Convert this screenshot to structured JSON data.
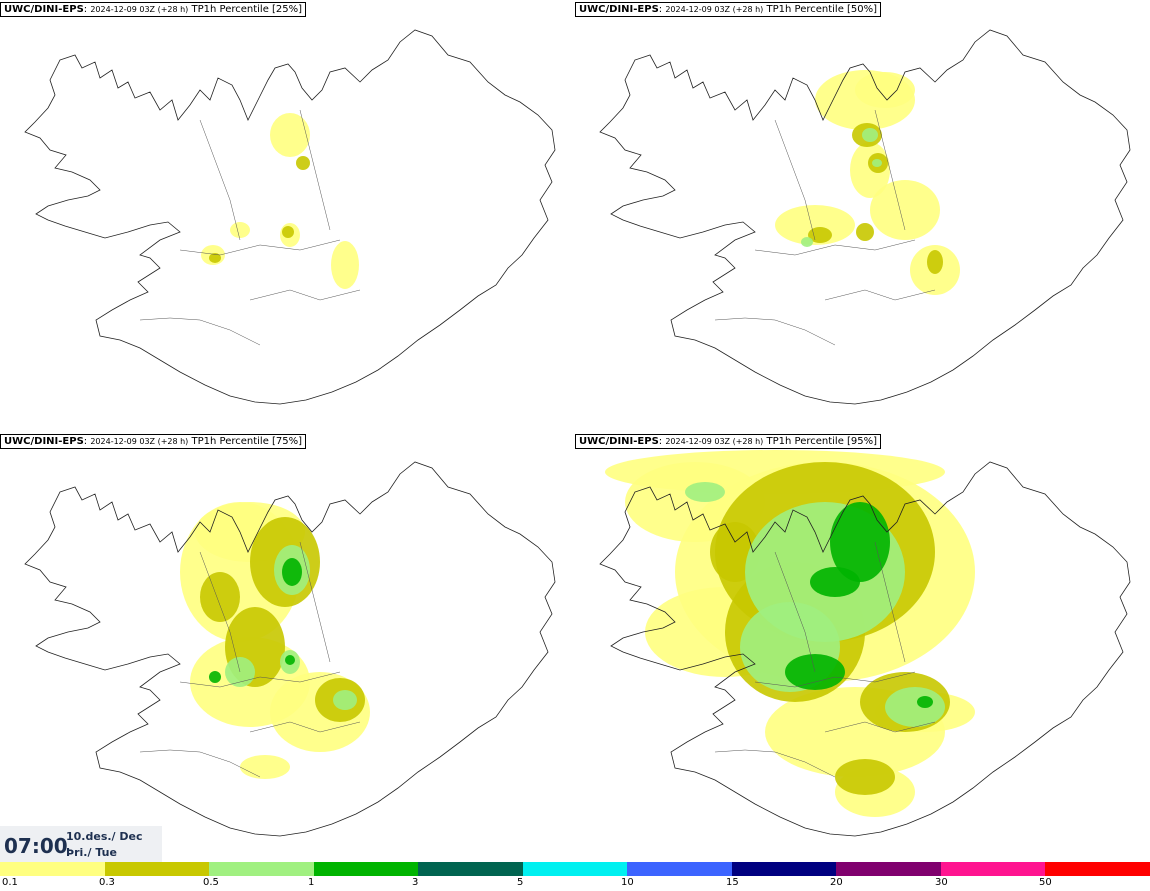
{
  "panels": [
    {
      "model": "UWC/DINI-EPS",
      "run": "2024-12-09 03Z (+28 h)",
      "field": "TP1h Percentile [25%]"
    },
    {
      "model": "UWC/DINI-EPS",
      "run": "2024-12-09 03Z (+28 h)",
      "field": "TP1h Percentile [50%]"
    },
    {
      "model": "UWC/DINI-EPS",
      "run": "2024-12-09 03Z (+28 h)",
      "field": "TP1h Percentile [75%]"
    },
    {
      "model": "UWC/DINI-EPS",
      "run": "2024-12-09 03Z (+28 h)",
      "field": "TP1h Percentile [95%]"
    }
  ],
  "valid_time": {
    "time": "07:00",
    "date_line1": "10.des./ Dec",
    "date_line2": "Þri./ Tue"
  },
  "colorbar": {
    "colors": [
      "#ffff80",
      "#c8c800",
      "#a0f080",
      "#00b400",
      "#006450",
      "#00f0f0",
      "#3c64ff",
      "#000080",
      "#80006e",
      "#ff1490",
      "#ff0000"
    ],
    "ticks": [
      "0.1",
      "0.3",
      "0.5",
      "1",
      "3",
      "5",
      "10",
      "15",
      "20",
      "30",
      "50"
    ]
  }
}
